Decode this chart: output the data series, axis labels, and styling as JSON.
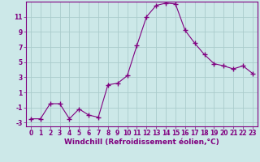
{
  "x": [
    0,
    1,
    2,
    3,
    4,
    5,
    6,
    7,
    8,
    9,
    10,
    11,
    12,
    13,
    14,
    15,
    16,
    17,
    18,
    19,
    20,
    21,
    22,
    23
  ],
  "y": [
    -2.5,
    -2.5,
    -0.5,
    -0.5,
    -2.5,
    -1.2,
    -2.0,
    -2.3,
    2.0,
    2.2,
    3.2,
    7.2,
    11.0,
    12.5,
    12.8,
    12.7,
    9.2,
    7.5,
    6.0,
    4.8,
    4.5,
    4.1,
    4.5,
    3.5
  ],
  "line_color": "#800080",
  "marker": "+",
  "marker_size": 4,
  "marker_linewidth": 1.0,
  "line_width": 0.8,
  "bg_color": "#cce8e8",
  "grid_color": "#aacccc",
  "xlabel": "Windchill (Refroidissement éolien,°C)",
  "xlim": [
    -0.5,
    23.5
  ],
  "ylim": [
    -3.5,
    13.0
  ],
  "yticks": [
    -3,
    -1,
    1,
    3,
    5,
    7,
    9,
    11
  ],
  "xticks": [
    0,
    1,
    2,
    3,
    4,
    5,
    6,
    7,
    8,
    9,
    10,
    11,
    12,
    13,
    14,
    15,
    16,
    17,
    18,
    19,
    20,
    21,
    22,
    23
  ],
  "tick_fontsize": 5.5,
  "xlabel_fontsize": 6.5,
  "spine_color": "#800080"
}
